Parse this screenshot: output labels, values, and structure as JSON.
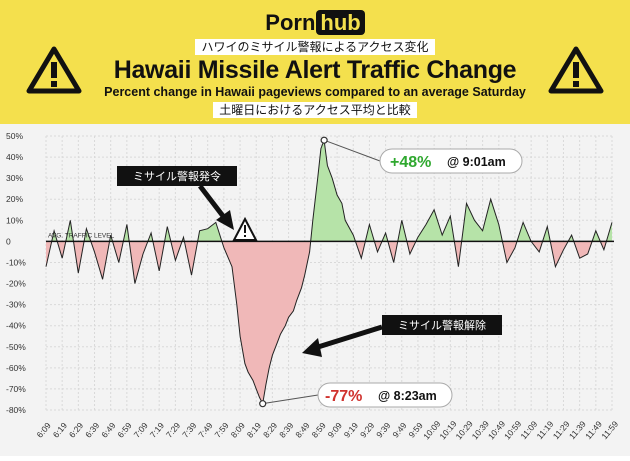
{
  "header": {
    "logo_left": "Porn",
    "logo_right": "hub",
    "jp_title": "ハワイのミサイル警報によるアクセス変化",
    "jp_subtitle": "土曜日におけるアクセス平均と比較",
    "colors": {
      "background": "#f4e04d",
      "text": "#111111"
    },
    "icon": "warning-triangle-icon"
  },
  "annotations": {
    "alert_issued": "ミサイル警報発令",
    "alert_cleared": "ミサイル警報解除",
    "peak_value": "+48%",
    "peak_time": "@ 9:01am",
    "trough_value": "-77%",
    "trough_time": "@ 8:23am"
  },
  "chart_data": {
    "type": "area",
    "title": "Hawaii Missile Alert Traffic Change",
    "subtitle": "Percent change in Hawaii pageviews compared to an average Saturday",
    "xlabel": "",
    "ylabel": "",
    "baseline_label": "AVG. TRAFFIC LEVEL",
    "ylim": [
      -80,
      50
    ],
    "y_ticks": [
      "50%",
      "40%",
      "30%",
      "20%",
      "10%",
      "0",
      "-10%",
      "-20%",
      "-30%",
      "-40%",
      "-50%",
      "-60%",
      "-70%",
      "-80%"
    ],
    "x_ticks": [
      "6:09",
      "6:19",
      "6:29",
      "6:39",
      "6:49",
      "6:59",
      "7:09",
      "7:19",
      "7:29",
      "7:39",
      "7:49",
      "7:59",
      "8:09",
      "8:19",
      "8:29",
      "8:39",
      "8:49",
      "8:59",
      "9:09",
      "9:19",
      "9:29",
      "9:39",
      "9:49",
      "9:59",
      "10:09",
      "10:19",
      "10:29",
      "10:39",
      "10:49",
      "10:59",
      "11:09",
      "11:19",
      "11:29",
      "11:39",
      "11:49",
      "11:59"
    ],
    "grid": true,
    "series": [
      {
        "x": [
          "6:09",
          "6:14",
          "6:19",
          "6:24",
          "6:29",
          "6:34",
          "6:39",
          "6:44",
          "6:49",
          "6:54",
          "6:59",
          "7:04",
          "7:09",
          "7:14",
          "7:19",
          "7:24",
          "7:29",
          "7:34",
          "7:39",
          "7:44",
          "7:49",
          "7:54",
          "7:59",
          "8:04",
          "8:07",
          "8:09",
          "8:12",
          "8:14",
          "8:17",
          "8:19",
          "8:21",
          "8:23",
          "8:25",
          "8:27",
          "8:29",
          "8:32",
          "8:34",
          "8:37",
          "8:39",
          "8:42",
          "8:44",
          "8:47",
          "8:49",
          "8:52",
          "8:54",
          "8:57",
          "8:59",
          "9:01",
          "9:03",
          "9:06",
          "9:09",
          "9:12",
          "9:14",
          "9:19",
          "9:24",
          "9:29",
          "9:34",
          "9:39",
          "9:44",
          "9:49",
          "9:54",
          "9:59",
          "10:04",
          "10:09",
          "10:14",
          "10:19",
          "10:24",
          "10:29",
          "10:34",
          "10:39",
          "10:44",
          "10:49",
          "10:54",
          "10:59",
          "11:04",
          "11:09",
          "11:14",
          "11:19",
          "11:24",
          "11:29",
          "11:34",
          "11:39",
          "11:44",
          "11:49",
          "11:54",
          "11:59"
        ],
        "y": [
          -12,
          5,
          -8,
          10,
          -15,
          6,
          -5,
          -18,
          3,
          -10,
          8,
          -20,
          -6,
          4,
          -14,
          7,
          -9,
          2,
          -16,
          5,
          6,
          9,
          -3,
          -12,
          -30,
          -45,
          -58,
          -62,
          -66,
          -70,
          -74,
          -77,
          -68,
          -60,
          -54,
          -48,
          -44,
          -40,
          -36,
          -33,
          -28,
          -22,
          -16,
          -5,
          10,
          30,
          44,
          48,
          36,
          30,
          22,
          18,
          10,
          3,
          -8,
          8,
          -5,
          4,
          -10,
          10,
          -6,
          2,
          8,
          15,
          3,
          12,
          -12,
          18,
          10,
          5,
          20,
          8,
          -10,
          -3,
          9,
          0,
          -5,
          7,
          -12,
          -4,
          3,
          -8,
          -6,
          5,
          -4,
          9
        ]
      }
    ]
  }
}
